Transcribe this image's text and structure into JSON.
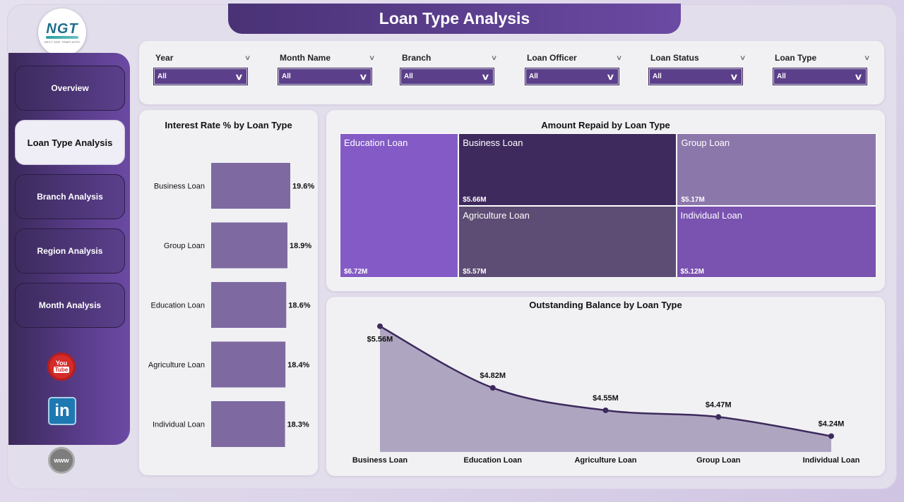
{
  "app": {
    "title": "Loan Type Analysis",
    "logo_text": "NGT",
    "logo_subtext": "NEXT GEN TEMPLATES"
  },
  "sidebar": {
    "items": [
      {
        "label": "Overview",
        "active": false
      },
      {
        "label": "Loan Type Analysis",
        "active": true
      },
      {
        "label": "Branch Analysis",
        "active": false
      },
      {
        "label": "Region Analysis",
        "active": false
      },
      {
        "label": "Month Analysis",
        "active": false
      }
    ],
    "social": {
      "youtube_top": "You",
      "youtube_bottom": "Tube",
      "linkedin": "in",
      "web": "www"
    }
  },
  "filters": [
    {
      "label": "Year",
      "value": "All"
    },
    {
      "label": "Month Name",
      "value": "All"
    },
    {
      "label": "Branch",
      "value": "All"
    },
    {
      "label": "Loan Officer",
      "value": "All"
    },
    {
      "label": "Loan Status",
      "value": "All"
    },
    {
      "label": "Loan Type",
      "value": "All"
    }
  ],
  "colors": {
    "accent": "#5c3f8a",
    "bar": "#7e6aa1",
    "area_fill": "#aea6c1",
    "line": "#3d2a5c"
  },
  "chart_data": [
    {
      "type": "bar",
      "orientation": "horizontal",
      "title": "Interest Rate % by Loan Type",
      "categories": [
        "Business Loan",
        "Group Loan",
        "Education Loan",
        "Agriculture Loan",
        "Individual Loan"
      ],
      "values": [
        19.6,
        18.9,
        18.6,
        18.4,
        18.3
      ],
      "labels": [
        "19.6%",
        "18.9%",
        "18.6%",
        "18.4%",
        "18.3%"
      ]
    },
    {
      "type": "treemap",
      "title": "Amount Repaid by Loan Type",
      "categories": [
        "Education Loan",
        "Business Loan",
        "Group Loan",
        "Agriculture Loan",
        "Individual Loan"
      ],
      "values": [
        6.72,
        5.66,
        5.17,
        5.57,
        5.12
      ],
      "labels": [
        "$6.72M",
        "$5.66M",
        "$5.17M",
        "$5.57M",
        "$5.12M"
      ],
      "colors": [
        "#845bc6",
        "#3f2a5e",
        "#8c77ab",
        "#5d4c73",
        "#7a52b0"
      ]
    },
    {
      "type": "area",
      "title": "Outstanding Balance by Loan Type",
      "categories": [
        "Business Loan",
        "Education Loan",
        "Agriculture Loan",
        "Group Loan",
        "Individual Loan"
      ],
      "values": [
        5.56,
        4.82,
        4.55,
        4.47,
        4.24
      ],
      "labels": [
        "$5.56M",
        "$4.82M",
        "$4.55M",
        "$4.47M",
        "$4.24M"
      ],
      "ylim": [
        4.05,
        5.6
      ],
      "grid": false
    }
  ]
}
